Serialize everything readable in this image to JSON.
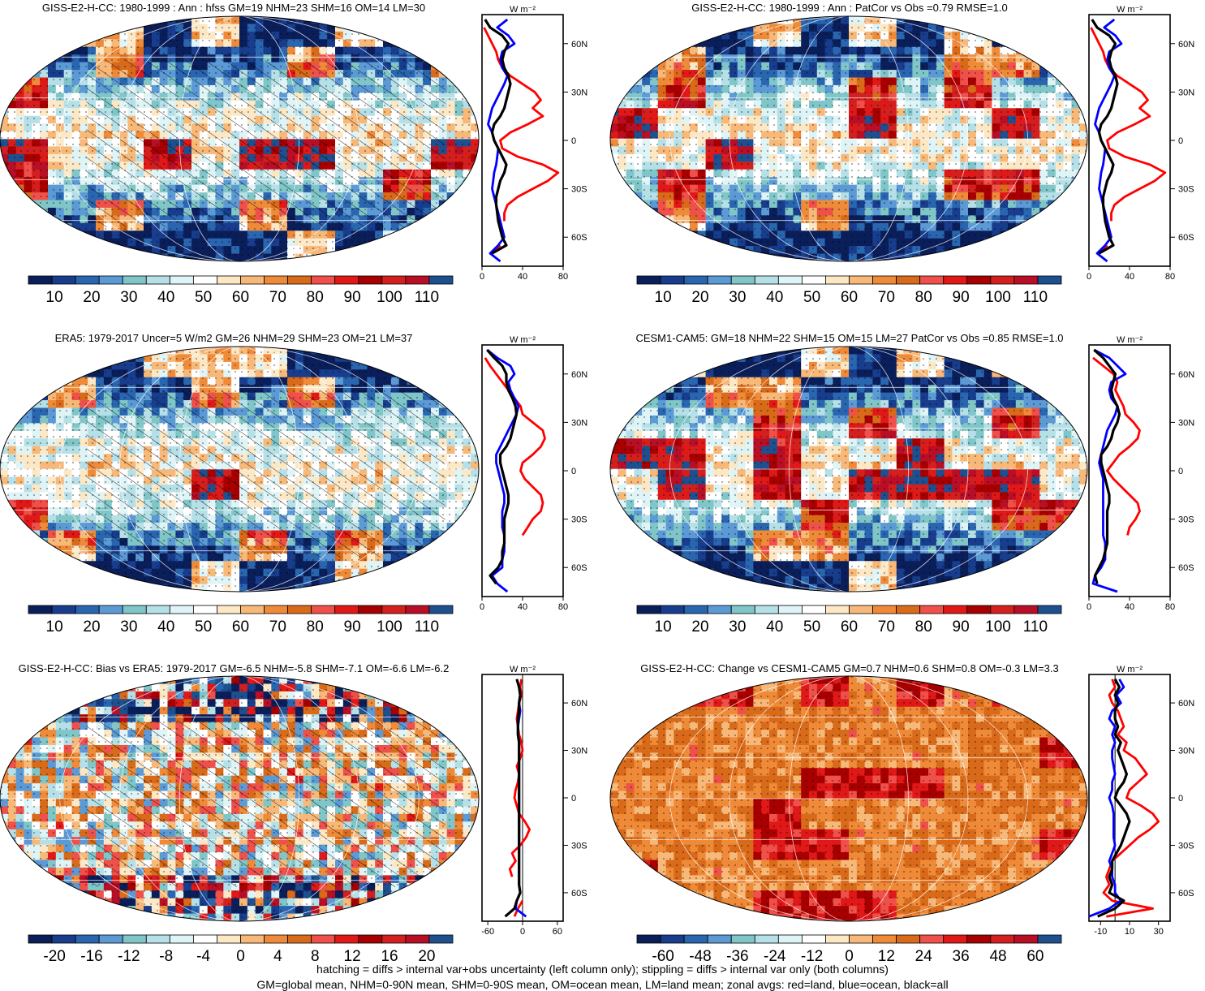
{
  "figure": {
    "footer_line1": "hatching = diffs > internal var+obs uncertainty (left column only); stippling = diffs > internal var only (both columns)",
    "footer_line2": "GM=global mean, NHM=0-90N mean, SHM=0-90S mean, OM=ocean mean, LM=land mean; zonal avgs: red=land, blue=ocean, black=all"
  },
  "colors": {
    "mean_scale": [
      "#0a1e5a",
      "#173d8c",
      "#2a66b0",
      "#5c9ad6",
      "#80c6c8",
      "#b6e0e8",
      "#def4f6",
      "#ffffff",
      "#fde8c6",
      "#f7b878",
      "#ef8a38",
      "#d86a1a",
      "#f0504a",
      "#e01818",
      "#a80000",
      "#d41f1f",
      "#b80e26",
      "#1e4f8e"
    ],
    "diff_scale": [
      "#0a1e5a",
      "#173d8c",
      "#2a66b0",
      "#5c9ad6",
      "#80c6c8",
      "#b6e0e8",
      "#def4f6",
      "#ffffff",
      "#fde8c6",
      "#f7b878",
      "#ef8a38",
      "#d86a1a",
      "#f0504a",
      "#e01818",
      "#a80000",
      "#d41f1f",
      "#b80e26",
      "#1e4f8e"
    ],
    "land": "#ff0000",
    "ocean": "#0000ff",
    "all": "#000000"
  },
  "chart_data": [
    {
      "type": "heatmap",
      "title": "GISS-E2-H-CC: 1980-1999 : Ann : hfss GM=19 NHM=23 SHM=16 OM=14 LM=30",
      "colorbar": {
        "labels": [
          "10",
          "20",
          "30",
          "40",
          "50",
          "60",
          "70",
          "80",
          "90",
          "100",
          "110"
        ]
      },
      "zonal": {
        "units": "W m⁻²",
        "lat_ticks": [
          "60N",
          "30N",
          "0",
          "30S",
          "60S"
        ],
        "x_ticks": [
          "0",
          "40",
          "80"
        ],
        "xlim": [
          0,
          80
        ],
        "ylim": [
          -78,
          78
        ],
        "lat": [
          75,
          70,
          65,
          60,
          55,
          50,
          45,
          40,
          35,
          30,
          25,
          20,
          15,
          10,
          5,
          0,
          -5,
          -10,
          -15,
          -20,
          -25,
          -30,
          -35,
          -40,
          -45,
          -50,
          -55,
          -60,
          -65,
          -70,
          -75
        ],
        "land": [
          null,
          2,
          6,
          10,
          14,
          16,
          20,
          28,
          40,
          52,
          58,
          50,
          60,
          45,
          28,
          18,
          20,
          35,
          60,
          75,
          65,
          50,
          35,
          25,
          22,
          22,
          null,
          null,
          18,
          10,
          null
        ],
        "ocean": [
          25,
          15,
          26,
          32,
          20,
          18,
          20,
          25,
          22,
          18,
          14,
          10,
          8,
          6,
          10,
          12,
          16,
          15,
          14,
          12,
          11,
          10,
          12,
          14,
          16,
          18,
          20,
          22,
          16,
          8,
          18
        ],
        "all": [
          3,
          8,
          20,
          26,
          22,
          20,
          22,
          26,
          28,
          26,
          24,
          22,
          18,
          12,
          10,
          12,
          16,
          20,
          24,
          22,
          18,
          16,
          14,
          14,
          15,
          16,
          18,
          20,
          24,
          10,
          null
        ]
      }
    },
    {
      "type": "heatmap",
      "title": "GISS-E2-H-CC: 1980-1999 : Ann : PatCor vs Obs =0.79 RMSE=1.0",
      "colorbar": {
        "labels": [
          "10",
          "20",
          "30",
          "40",
          "50",
          "60",
          "70",
          "80",
          "90",
          "100",
          "110"
        ]
      },
      "zonal": {
        "units": "W m⁻²",
        "lat_ticks": [
          "60N",
          "30N",
          "0",
          "30S",
          "60S"
        ],
        "x_ticks": [
          "0",
          "40",
          "80"
        ],
        "xlim": [
          0,
          80
        ],
        "ylim": [
          -78,
          78
        ],
        "lat": [
          75,
          70,
          65,
          60,
          55,
          50,
          45,
          40,
          35,
          30,
          25,
          20,
          15,
          10,
          5,
          0,
          -5,
          -10,
          -15,
          -20,
          -25,
          -30,
          -35,
          -40,
          -45,
          -50,
          -55,
          -60,
          -65,
          -70,
          -75
        ],
        "land": [
          null,
          2,
          6,
          10,
          14,
          16,
          20,
          28,
          40,
          52,
          58,
          50,
          60,
          45,
          28,
          18,
          20,
          35,
          60,
          75,
          65,
          50,
          35,
          25,
          22,
          22,
          null,
          null,
          18,
          10,
          null
        ],
        "ocean": [
          25,
          15,
          26,
          32,
          20,
          18,
          20,
          25,
          22,
          18,
          14,
          10,
          8,
          6,
          10,
          12,
          16,
          15,
          14,
          12,
          11,
          10,
          12,
          14,
          16,
          18,
          20,
          22,
          16,
          8,
          18
        ],
        "all": [
          3,
          8,
          20,
          26,
          22,
          20,
          22,
          26,
          28,
          26,
          24,
          22,
          18,
          12,
          10,
          12,
          16,
          20,
          24,
          22,
          18,
          16,
          14,
          14,
          15,
          16,
          18,
          20,
          24,
          10,
          null
        ]
      }
    },
    {
      "type": "heatmap",
      "title": "ERA5: 1979-2017 Uncer=5 W/m2 GM=26 NHM=29 SHM=23 OM=21 LM=37",
      "colorbar": {
        "labels": [
          "10",
          "20",
          "30",
          "40",
          "50",
          "60",
          "70",
          "80",
          "90",
          "100",
          "110"
        ]
      },
      "zonal": {
        "units": "W m⁻²",
        "lat_ticks": [
          "60N",
          "30N",
          "0",
          "30S",
          "60S"
        ],
        "x_ticks": [
          "0",
          "40",
          "80"
        ],
        "xlim": [
          0,
          80
        ],
        "ylim": [
          -78,
          78
        ],
        "lat": [
          75,
          70,
          65,
          60,
          55,
          50,
          45,
          40,
          35,
          30,
          25,
          20,
          15,
          10,
          5,
          0,
          -5,
          -10,
          -15,
          -20,
          -25,
          -30,
          -35,
          -40,
          -45,
          -50,
          -55,
          -60,
          -65,
          -70,
          -75
        ],
        "land": [
          null,
          3,
          8,
          14,
          20,
          26,
          32,
          38,
          40,
          50,
          60,
          62,
          58,
          50,
          40,
          38,
          42,
          50,
          58,
          60,
          58,
          50,
          45,
          40,
          null,
          null,
          null,
          null,
          null,
          null,
          null
        ],
        "ocean": [
          5,
          15,
          28,
          32,
          26,
          28,
          32,
          36,
          34,
          30,
          26,
          22,
          18,
          14,
          14,
          16,
          18,
          20,
          22,
          22,
          20,
          20,
          20,
          22,
          22,
          22,
          20,
          20,
          10,
          15,
          25
        ],
        "all": [
          5,
          12,
          20,
          24,
          24,
          26,
          30,
          33,
          34,
          32,
          30,
          28,
          24,
          18,
          18,
          20,
          22,
          24,
          26,
          26,
          24,
          22,
          22,
          22,
          22,
          20,
          20,
          16,
          8,
          14,
          null
        ]
      }
    },
    {
      "type": "heatmap",
      "title": "CESM1-CAM5: GM=18 NHM=22 SHM=15 OM=15 LM=27 PatCor vs Obs =0.85 RMSE=1.0",
      "colorbar": {
        "labels": [
          "10",
          "20",
          "30",
          "40",
          "50",
          "60",
          "70",
          "80",
          "90",
          "100",
          "110"
        ]
      },
      "zonal": {
        "units": "W m⁻²",
        "lat_ticks": [
          "60N",
          "30N",
          "0",
          "30S",
          "60S"
        ],
        "x_ticks": [
          "0",
          "40",
          "80"
        ],
        "xlim": [
          0,
          80
        ],
        "ylim": [
          -78,
          78
        ],
        "lat": [
          75,
          70,
          65,
          60,
          55,
          50,
          45,
          40,
          35,
          30,
          25,
          20,
          15,
          10,
          5,
          0,
          -5,
          -10,
          -15,
          -20,
          -25,
          -30,
          -35,
          -40,
          -45,
          -50,
          -55,
          -60,
          -65,
          -70,
          -75
        ],
        "land": [
          null,
          4,
          14,
          24,
          28,
          26,
          30,
          34,
          36,
          44,
          50,
          48,
          40,
          30,
          24,
          18,
          24,
          32,
          40,
          48,
          50,
          46,
          40,
          38,
          null,
          null,
          null,
          null,
          null,
          null,
          null
        ],
        "ocean": [
          5,
          20,
          28,
          36,
          22,
          20,
          22,
          28,
          26,
          22,
          18,
          16,
          14,
          12,
          10,
          12,
          14,
          14,
          14,
          14,
          14,
          14,
          14,
          14,
          16,
          16,
          16,
          12,
          6,
          4,
          28
        ],
        "all": [
          5,
          14,
          20,
          26,
          24,
          22,
          24,
          28,
          30,
          28,
          24,
          22,
          18,
          12,
          12,
          14,
          16,
          18,
          20,
          20,
          18,
          18,
          18,
          18,
          18,
          16,
          14,
          10,
          6,
          8,
          null
        ]
      }
    },
    {
      "type": "heatmap",
      "title": "GISS-E2-H-CC: Bias vs ERA5: 1979-2017 GM=-6.5 NHM=-5.8 SHM=-7.1 OM=-6.6 LM=-6.2",
      "colorbar": {
        "labels": [
          "-20",
          "-16",
          "-12",
          "-8",
          "-4",
          "0",
          "4",
          "8",
          "12",
          "16",
          "20"
        ]
      },
      "zonal": {
        "units": "W m⁻²",
        "lat_ticks": [
          "60N",
          "30N",
          "0",
          "30S",
          "60S"
        ],
        "x_ticks": [
          "-60",
          "0",
          "60"
        ],
        "xlim": [
          -70,
          70
        ],
        "ylim": [
          -78,
          78
        ],
        "lat": [
          75,
          70,
          65,
          60,
          55,
          50,
          45,
          40,
          35,
          30,
          25,
          20,
          15,
          10,
          5,
          0,
          -5,
          -10,
          -15,
          -20,
          -25,
          -30,
          -35,
          -40,
          -45,
          -50,
          -55,
          -60,
          -65,
          -70,
          -75
        ],
        "land": [
          -2,
          -4,
          -2,
          -6,
          -8,
          -10,
          -8,
          -6,
          -2,
          0,
          -4,
          -10,
          -6,
          -8,
          -12,
          -14,
          -10,
          -6,
          4,
          12,
          6,
          -4,
          -18,
          -12,
          -22,
          -18,
          null,
          null,
          0,
          -8,
          -14
        ],
        "ocean": [
          -10,
          -6,
          -4,
          -6,
          -4,
          -6,
          -8,
          -8,
          -6,
          -6,
          -6,
          -6,
          -6,
          -6,
          -6,
          -6,
          -6,
          -6,
          -6,
          -6,
          -6,
          -6,
          -6,
          -6,
          -6,
          -6,
          -6,
          -4,
          -10,
          -12,
          6
        ],
        "all": [
          -10,
          -6,
          -4,
          -6,
          -6,
          -8,
          -8,
          -8,
          -6,
          -6,
          -6,
          -6,
          -6,
          -6,
          -6,
          -6,
          -6,
          -6,
          -6,
          -6,
          -6,
          -6,
          -6,
          -6,
          -6,
          -6,
          -6,
          -4,
          -10,
          -14,
          -30
        ]
      }
    },
    {
      "type": "heatmap",
      "title": "GISS-E2-H-CC: Change vs CESM1-CAM5 GM=0.7 NHM=0.6 SHM=0.8 OM=-0.3 LM=3.3",
      "colorbar": {
        "labels": [
          "-60",
          "-48",
          "-36",
          "-24",
          "-12",
          "0",
          "12",
          "24",
          "36",
          "48",
          "60"
        ]
      },
      "zonal": {
        "units": "W m⁻²",
        "lat_ticks": [
          "60N",
          "30N",
          "0",
          "30S",
          "60S"
        ],
        "x_ticks": [
          "-10",
          "10",
          "30"
        ],
        "xlim": [
          -18,
          38
        ],
        "ylim": [
          -78,
          78
        ],
        "lat": [
          75,
          70,
          65,
          60,
          55,
          50,
          45,
          40,
          35,
          30,
          25,
          20,
          15,
          10,
          5,
          0,
          -5,
          -10,
          -15,
          -20,
          -25,
          -30,
          -35,
          -40,
          -45,
          -50,
          -55,
          -60,
          -65,
          -70,
          -75
        ],
        "land": [
          -2,
          0,
          -4,
          -2,
          2,
          4,
          6,
          2,
          8,
          6,
          14,
          18,
          22,
          16,
          10,
          8,
          18,
          26,
          30,
          24,
          16,
          10,
          4,
          -2,
          -4,
          -6,
          -4,
          -8,
          -2,
          26,
          -6
        ],
        "ocean": [
          3,
          6,
          1,
          4,
          -2,
          -4,
          0,
          -2,
          0,
          -2,
          -2,
          -1,
          0,
          -2,
          -2,
          -4,
          -2,
          -1,
          -1,
          -1,
          -1,
          0,
          -2,
          -4,
          -2,
          -2,
          0,
          0,
          4,
          -4,
          -30
        ],
        "all": [
          0,
          3,
          0,
          2,
          0,
          0,
          2,
          0,
          4,
          2,
          4,
          6,
          8,
          6,
          2,
          0,
          4,
          8,
          10,
          8,
          6,
          4,
          1,
          -2,
          -2,
          -4,
          -2,
          -4,
          6,
          0,
          -12
        ]
      }
    }
  ]
}
